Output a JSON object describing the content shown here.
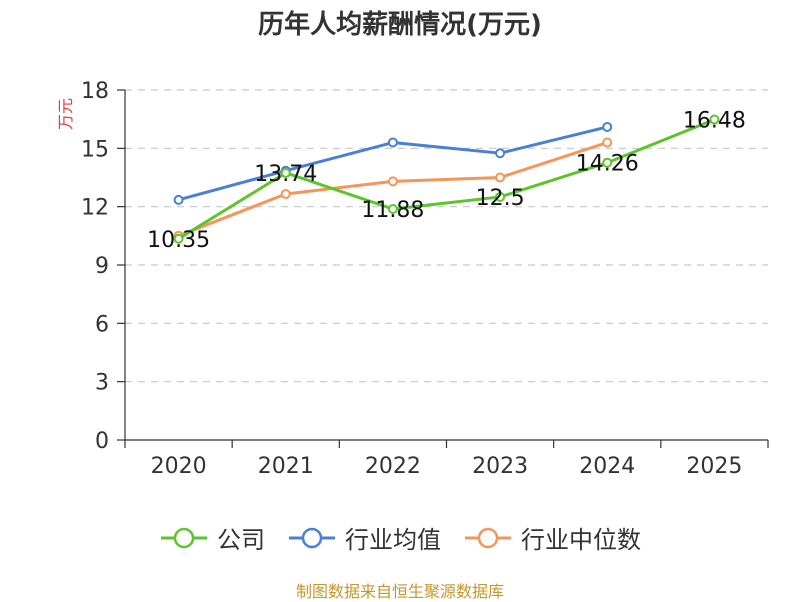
{
  "chart_data": {
    "type": "line",
    "title": "历年人均薪酬情况(万元)",
    "ylabel": "万元",
    "xlabel": "",
    "categories": [
      "2020",
      "2021",
      "2022",
      "2023",
      "2024",
      "2025"
    ],
    "ylim": [
      0,
      18
    ],
    "yticks": [
      0,
      3,
      6,
      9,
      12,
      15,
      18
    ],
    "grid": true,
    "legend_position": "bottom",
    "series": [
      {
        "name": "公司",
        "color": "#5cc42c",
        "values": [
          10.35,
          13.74,
          11.88,
          12.5,
          14.26,
          16.48
        ],
        "labels": [
          "10.35",
          "13.74",
          "11.88",
          "12.5",
          "14.26",
          "16.48"
        ]
      },
      {
        "name": "行业均值",
        "color": "#4a7fd6",
        "values": [
          12.35,
          13.85,
          15.3,
          14.75,
          16.1,
          null
        ]
      },
      {
        "name": "行业中位数",
        "color": "#f5955a",
        "values": [
          10.5,
          12.65,
          13.3,
          13.5,
          15.3,
          null
        ]
      }
    ]
  },
  "footer": "制图数据来自恒生聚源数据库"
}
